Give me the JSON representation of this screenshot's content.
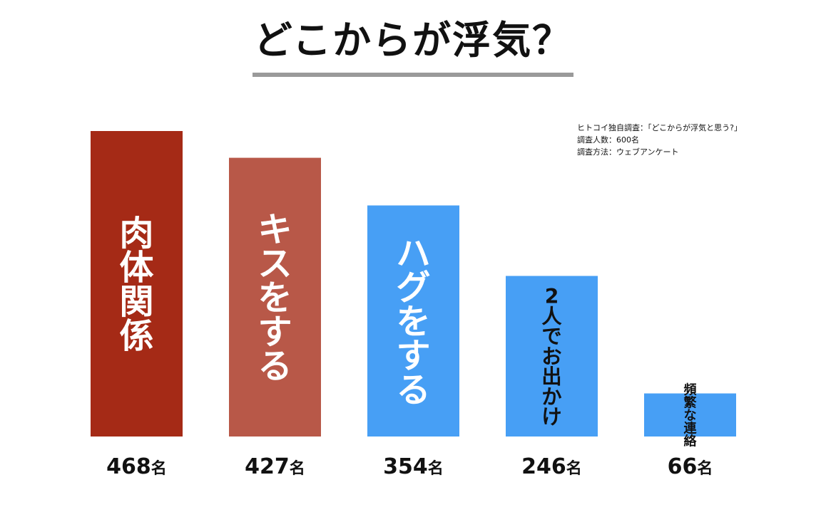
{
  "title": "どこからが浮気？",
  "note": {
    "line1": "ヒトコイ独自調査：「どこからが浮気と思う?」",
    "line2": "調査人数：600名",
    "line3": "調査方法：ウェブアンケート"
  },
  "chart_data": {
    "type": "bar",
    "title": "どこからが浮気？",
    "categories": [
      "肉体関係",
      "キスをする",
      "ハグをする",
      "2人でお出かけ",
      "頻繁な連絡"
    ],
    "values": [
      468,
      427,
      354,
      246,
      66
    ],
    "value_labels": [
      "468名",
      "427名",
      "354名",
      "246名",
      "66名"
    ],
    "unit": "名",
    "ylim": [
      0,
      468
    ],
    "grid": false,
    "bar_colors": [
      "#a52a16",
      "#b85848",
      "#479ff5",
      "#479ff5",
      "#479ff5"
    ],
    "label_colors": [
      "#ffffff",
      "#ffffff",
      "#ffffff",
      "#111111",
      "#111111"
    ]
  }
}
